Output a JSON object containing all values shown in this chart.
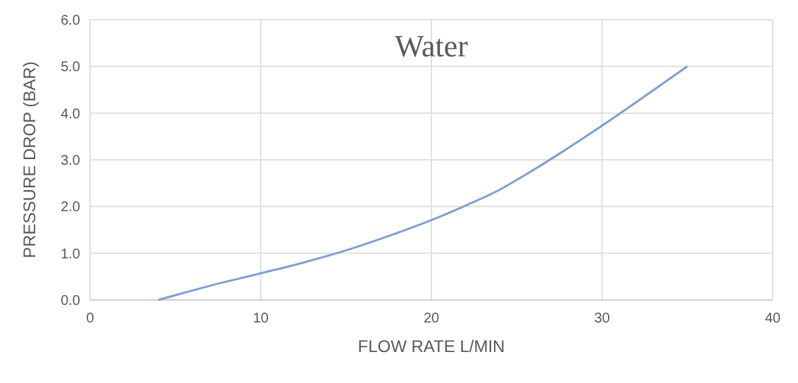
{
  "chart_data": {
    "type": "line",
    "title": "Water",
    "xlabel": "FLOW RATE L/MIN",
    "ylabel": "PRESSURE DROP (BAR)",
    "x": [
      4,
      7,
      10,
      12.5,
      15,
      17.5,
      20,
      22,
      24,
      25,
      27.5,
      30,
      32.5,
      35
    ],
    "series": [
      {
        "color": "#7f9fcf",
        "values": [
          0,
          0.3,
          0.57,
          0.8,
          1.06,
          1.37,
          1.71,
          2.02,
          2.36,
          2.57,
          3.13,
          3.73,
          4.36,
          5.0
        ]
      }
    ],
    "xlim": [
      0,
      40
    ],
    "xticks": [
      0,
      10,
      20,
      30,
      40
    ],
    "ylim": [
      0,
      6
    ],
    "yticks": [
      {
        "value": 0,
        "label": "0.0"
      },
      {
        "value": 1,
        "label": "1.0"
      },
      {
        "value": 2,
        "label": "2.0"
      },
      {
        "value": 3,
        "label": "3.0"
      },
      {
        "value": 4,
        "label": "4.0"
      },
      {
        "value": 5,
        "label": "5.0"
      },
      {
        "value": 6,
        "label": "6.0"
      }
    ],
    "grid": true,
    "marker": "none",
    "line_style": "solid"
  }
}
